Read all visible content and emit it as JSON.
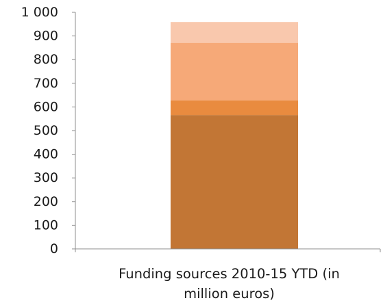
{
  "chart_data": {
    "type": "bar",
    "stacked": true,
    "categories": [
      "Funding sources 2010-15 YTD (in million euros)"
    ],
    "category_label_lines": [
      "Funding sources 2010-15 YTD (in",
      "million euros)"
    ],
    "series": [
      {
        "values": [
          566
        ],
        "color": "#C27635"
      },
      {
        "values": [
          62
        ],
        "color": "#E98B3F"
      },
      {
        "values": [
          243
        ],
        "color": "#F6A978"
      },
      {
        "values": [
          88
        ],
        "color": "#F9C8AD"
      }
    ],
    "ylim": [
      0,
      1000
    ],
    "yticks": [
      0,
      100,
      200,
      300,
      400,
      500,
      600,
      700,
      800,
      900,
      1000
    ],
    "ytick_labels": [
      "0",
      "100",
      "200",
      "300",
      "400",
      "500",
      "600",
      "700",
      "800",
      "900",
      "1 000"
    ],
    "grid": false,
    "legend": "none",
    "title": "",
    "xlabel": "",
    "ylabel": ""
  }
}
